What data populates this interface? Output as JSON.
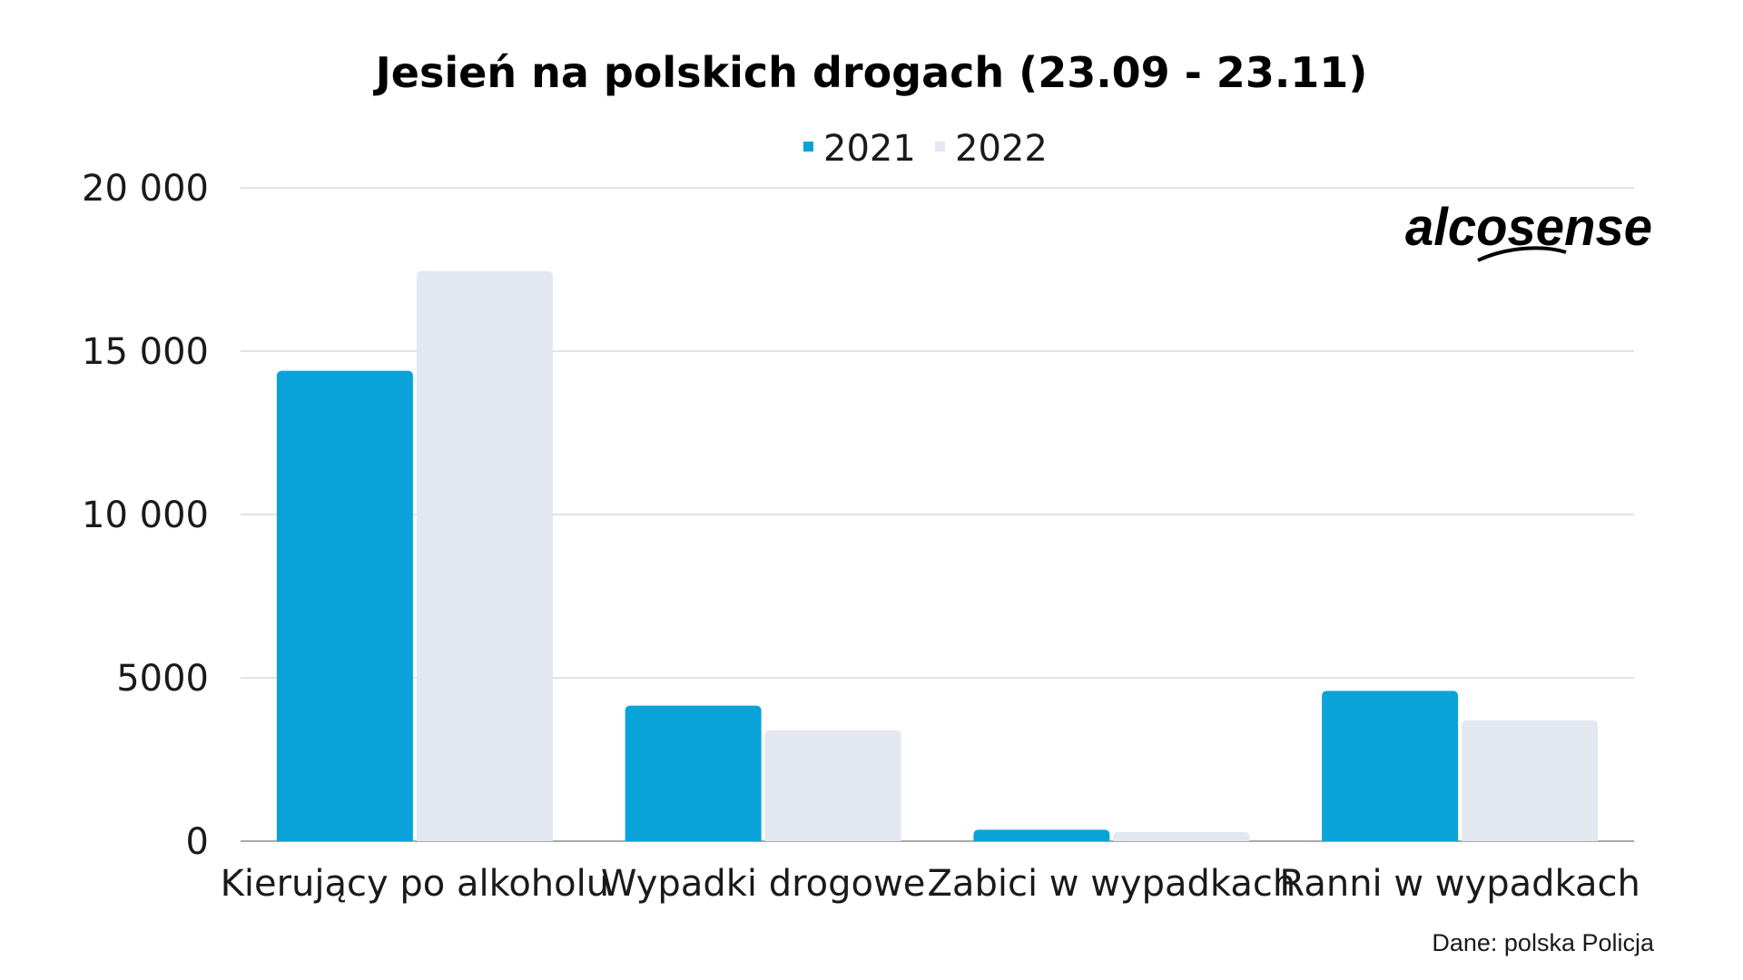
{
  "chart_data": {
    "type": "bar",
    "title": "Jesień na polskich drogach (23.09 - 23.11)",
    "categories": [
      "Kierujący po alkoholu",
      "Wypadki drogowe",
      "Zabici w wypadkach",
      "Ranni w wypadkach"
    ],
    "series": [
      {
        "name": "2021",
        "color": "#0aa3d9",
        "values": [
          14400,
          4150,
          350,
          4600
        ]
      },
      {
        "name": "2022",
        "color": "#e3e7ef",
        "values": [
          17450,
          3400,
          280,
          3700
        ]
      }
    ],
    "ylim": [
      0,
      20000
    ],
    "yticks": [
      0,
      5000,
      10000,
      15000,
      20000
    ],
    "ytick_labels": [
      "0",
      "5000",
      "10 000",
      "15 000",
      "20 000"
    ],
    "xlabel": "",
    "ylabel": "",
    "grid": true,
    "legend_position": "top-center",
    "source": "Dane: polska Policja"
  },
  "logo": {
    "text": "alcosense",
    "icon": "alcosense-logo"
  }
}
